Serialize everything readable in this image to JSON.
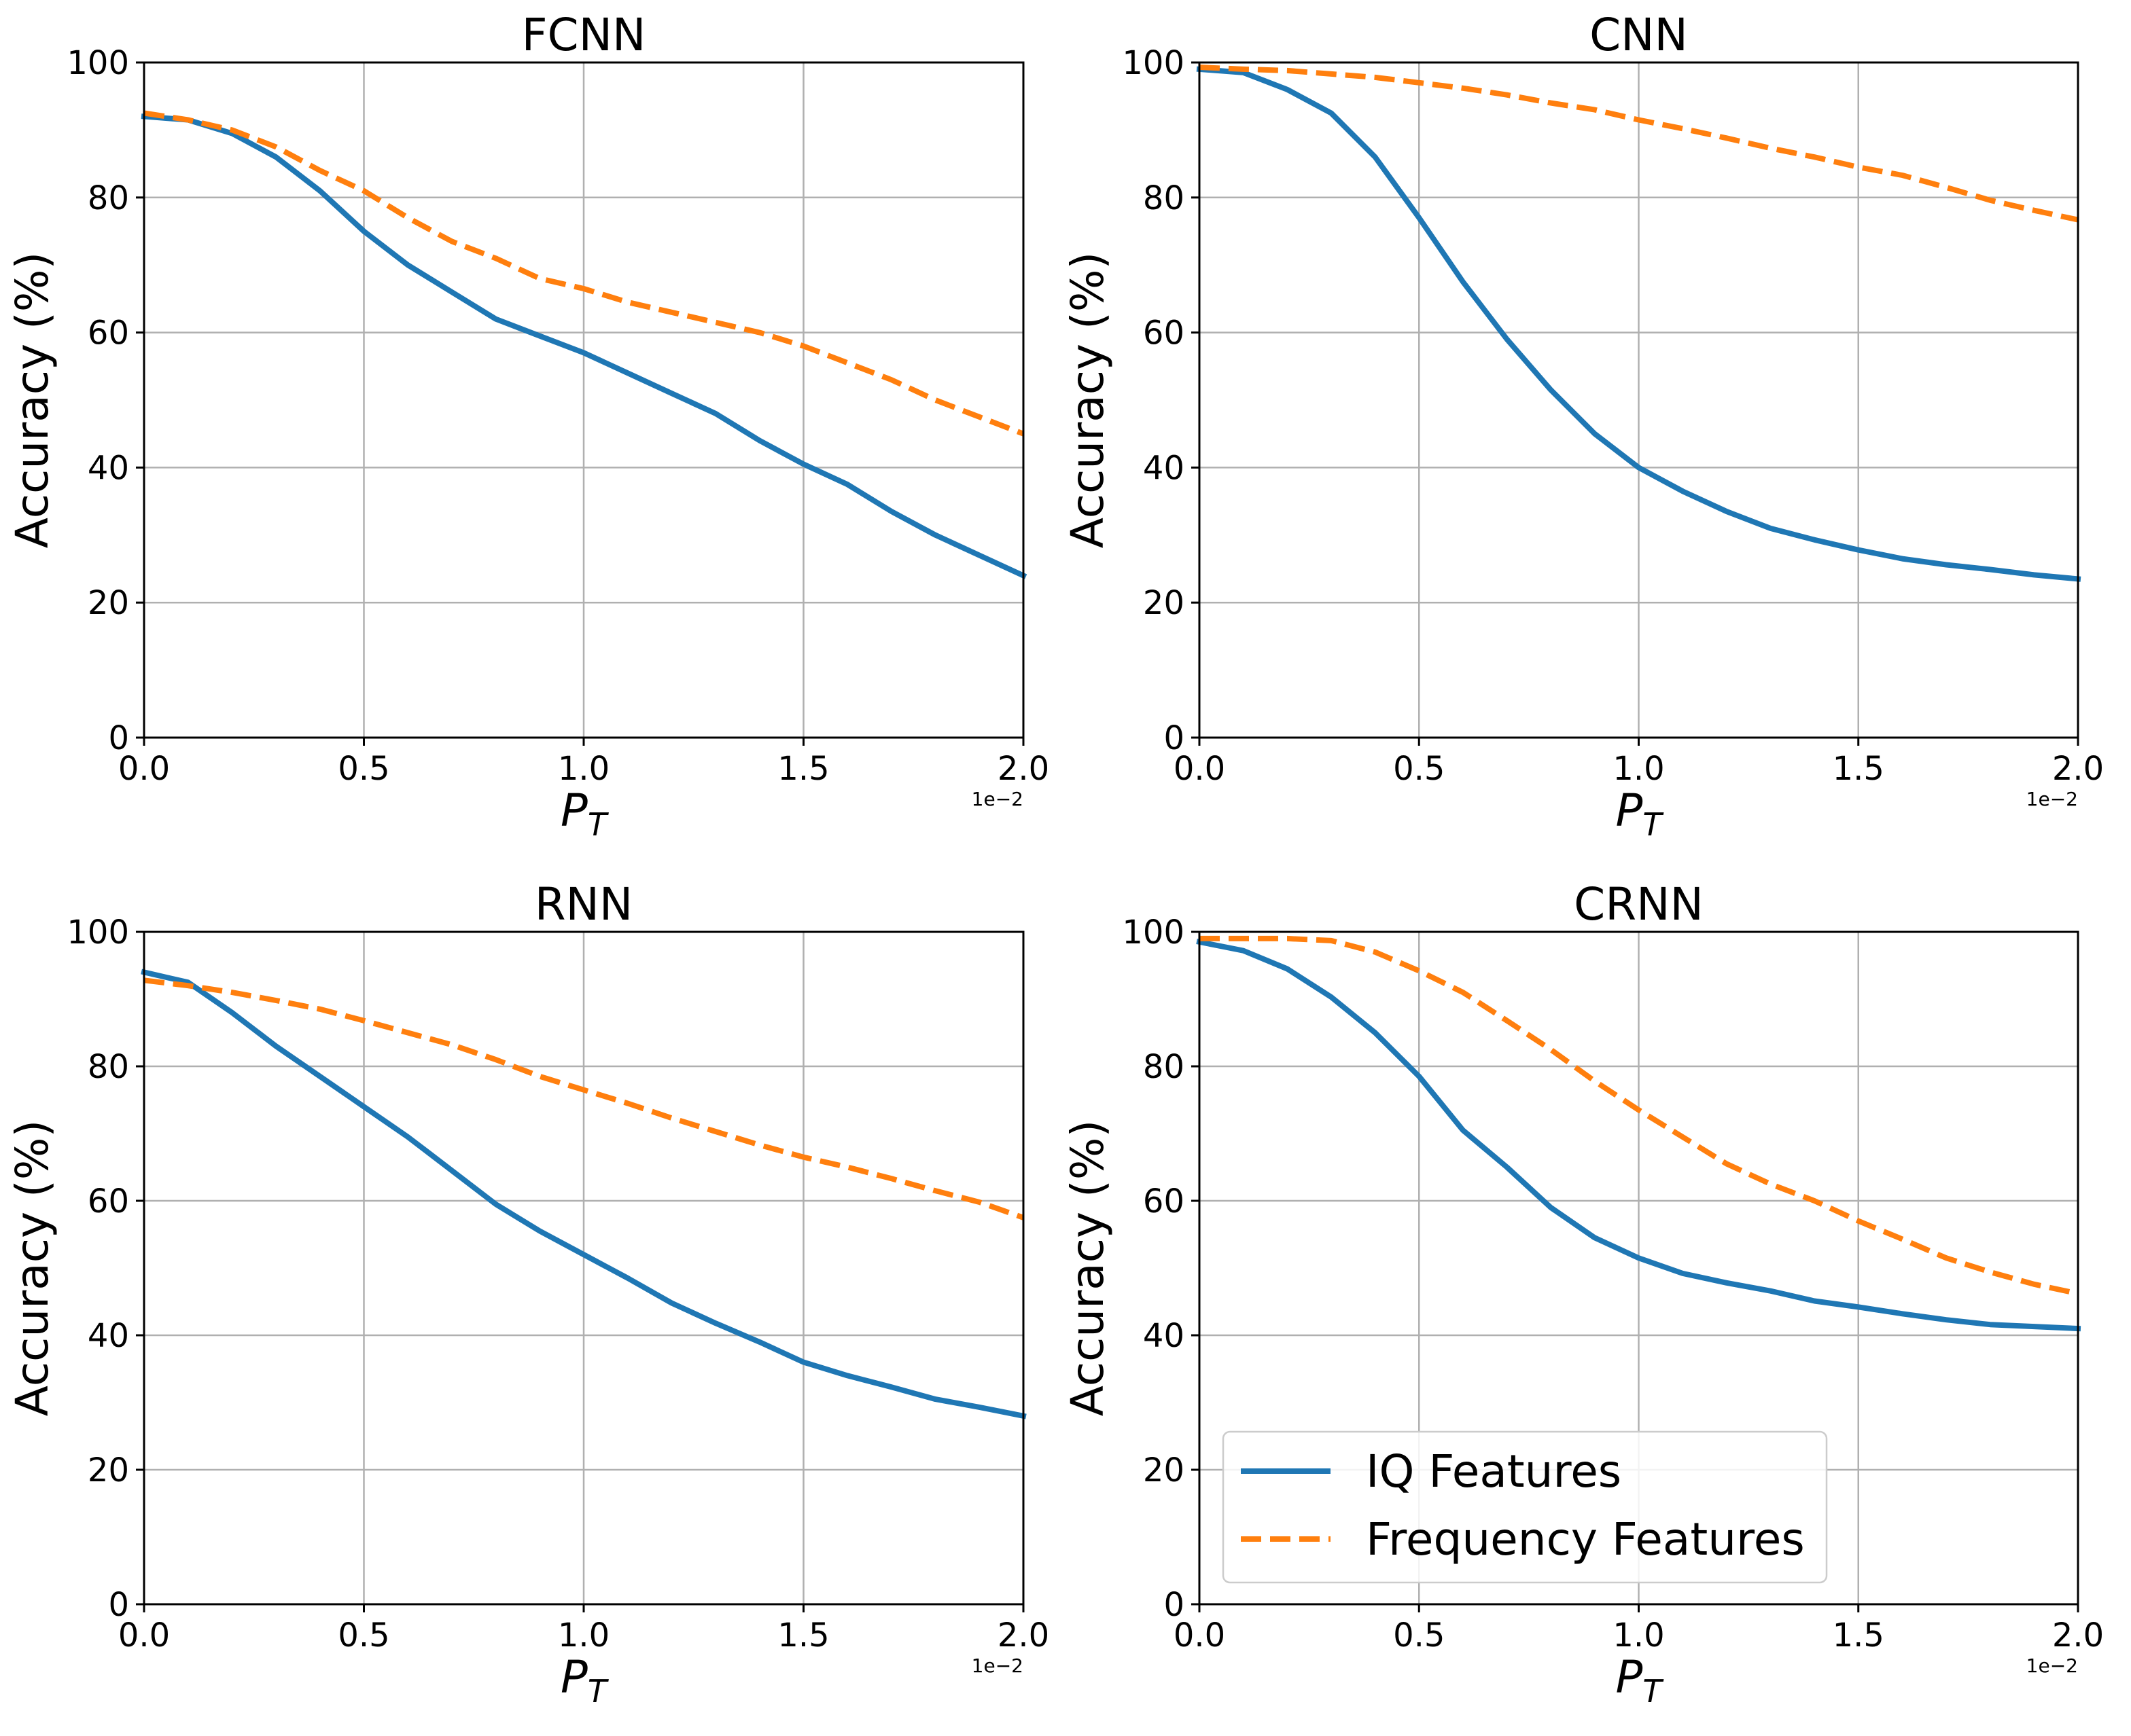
{
  "chart_data": [
    {
      "type": "line",
      "title": "FCNN",
      "xlabel": "P",
      "xlabel_subscript": "T",
      "ylabel": "Accuracy (%)",
      "x_offset_label": "1e−2",
      "xlim": [
        0.0,
        2.0
      ],
      "ylim": [
        0,
        100
      ],
      "xticks": [
        "0.0",
        "0.5",
        "1.0",
        "1.5",
        "2.0"
      ],
      "yticks": [
        "0",
        "20",
        "40",
        "60",
        "80",
        "100"
      ],
      "grid": true,
      "x": [
        0.0,
        0.1,
        0.2,
        0.3,
        0.4,
        0.5,
        0.6,
        0.7,
        0.8,
        0.9,
        1.0,
        1.1,
        1.2,
        1.3,
        1.4,
        1.5,
        1.6,
        1.7,
        1.8,
        1.9,
        2.0
      ],
      "series": [
        {
          "name": "IQ Features",
          "color": "#1f77b4",
          "dash": "solid",
          "values": [
            92,
            91.5,
            89.5,
            86,
            81,
            75,
            70,
            66,
            62,
            59.5,
            57,
            54,
            51,
            48,
            44,
            40.5,
            37.5,
            33.5,
            30,
            27,
            24
          ]
        },
        {
          "name": "Frequency Features",
          "color": "#ff7f0e",
          "dash": "dashed",
          "values": [
            92.5,
            91.5,
            90,
            87.5,
            84,
            81,
            77,
            73.5,
            71,
            68,
            66.5,
            64.5,
            63,
            61.5,
            60,
            58,
            55.5,
            53,
            50,
            47.5,
            45
          ]
        }
      ]
    },
    {
      "type": "line",
      "title": "CNN",
      "xlabel": "P",
      "xlabel_subscript": "T",
      "ylabel": "Accuracy (%)",
      "x_offset_label": "1e−2",
      "xlim": [
        0.0,
        2.0
      ],
      "ylim": [
        0,
        100
      ],
      "xticks": [
        "0.0",
        "0.5",
        "1.0",
        "1.5",
        "2.0"
      ],
      "yticks": [
        "0",
        "20",
        "40",
        "60",
        "80",
        "100"
      ],
      "grid": true,
      "x": [
        0.0,
        0.1,
        0.2,
        0.3,
        0.4,
        0.5,
        0.6,
        0.7,
        0.8,
        0.9,
        1.0,
        1.1,
        1.2,
        1.3,
        1.4,
        1.5,
        1.6,
        1.7,
        1.8,
        1.9,
        2.0
      ],
      "series": [
        {
          "name": "IQ Features",
          "color": "#1f77b4",
          "dash": "solid",
          "values": [
            99,
            98.5,
            96,
            92.5,
            86,
            77,
            67.5,
            59,
            51.5,
            45,
            40,
            36.5,
            33.5,
            31,
            29.3,
            27.8,
            26.5,
            25.6,
            24.9,
            24.1,
            23.5
          ]
        },
        {
          "name": "Frequency Features",
          "color": "#ff7f0e",
          "dash": "dashed",
          "values": [
            99.3,
            99,
            98.8,
            98.3,
            97.8,
            97,
            96.2,
            95.2,
            94,
            93,
            91.5,
            90.2,
            88.8,
            87.3,
            86,
            84.5,
            83.3,
            81.5,
            79.6,
            78.1,
            76.7
          ]
        }
      ]
    },
    {
      "type": "line",
      "title": "RNN",
      "xlabel": "P",
      "xlabel_subscript": "T",
      "ylabel": "Accuracy (%)",
      "x_offset_label": "1e−2",
      "xlim": [
        0.0,
        2.0
      ],
      "ylim": [
        0,
        100
      ],
      "xticks": [
        "0.0",
        "0.5",
        "1.0",
        "1.5",
        "2.0"
      ],
      "yticks": [
        "0",
        "20",
        "40",
        "60",
        "80",
        "100"
      ],
      "grid": true,
      "x": [
        0.0,
        0.1,
        0.2,
        0.3,
        0.4,
        0.5,
        0.6,
        0.7,
        0.8,
        0.9,
        1.0,
        1.1,
        1.2,
        1.3,
        1.4,
        1.5,
        1.6,
        1.7,
        1.8,
        1.9,
        2.0
      ],
      "series": [
        {
          "name": "IQ Features",
          "color": "#1f77b4",
          "dash": "solid",
          "values": [
            94,
            92.5,
            88,
            83,
            78.5,
            74,
            69.5,
            64.5,
            59.5,
            55.5,
            52,
            48.5,
            44.8,
            41.8,
            39,
            36,
            34,
            32.3,
            30.5,
            29.3,
            28
          ]
        },
        {
          "name": "Frequency Features",
          "color": "#ff7f0e",
          "dash": "dashed",
          "values": [
            92.8,
            92,
            91,
            89.8,
            88.5,
            86.8,
            85,
            83.2,
            81,
            78.5,
            76.5,
            74.5,
            72.3,
            70.3,
            68.3,
            66.5,
            65,
            63.3,
            61.5,
            59.8,
            57.5
          ]
        }
      ]
    },
    {
      "type": "line",
      "title": "CRNN",
      "xlabel": "P",
      "xlabel_subscript": "T",
      "ylabel": "Accuracy (%)",
      "x_offset_label": "1e−2",
      "xlim": [
        0.0,
        2.0
      ],
      "ylim": [
        0,
        100
      ],
      "xticks": [
        "0.0",
        "0.5",
        "1.0",
        "1.5",
        "2.0"
      ],
      "yticks": [
        "0",
        "20",
        "40",
        "60",
        "80",
        "100"
      ],
      "grid": true,
      "legend": {
        "location": "lower-left",
        "entries": [
          "IQ Features",
          "Frequency Features"
        ]
      },
      "x": [
        0.0,
        0.1,
        0.2,
        0.3,
        0.4,
        0.5,
        0.6,
        0.7,
        0.8,
        0.9,
        1.0,
        1.1,
        1.2,
        1.3,
        1.4,
        1.5,
        1.6,
        1.7,
        1.8,
        1.9,
        2.0
      ],
      "series": [
        {
          "name": "IQ Features",
          "color": "#1f77b4",
          "dash": "solid",
          "values": [
            98.5,
            97.2,
            94.5,
            90.3,
            85,
            78.5,
            70.5,
            65,
            59,
            54.5,
            51.5,
            49.2,
            47.8,
            46.6,
            45.1,
            44.2,
            43.2,
            42.3,
            41.6,
            41.3,
            41
          ]
        },
        {
          "name": "Frequency Features",
          "color": "#ff7f0e",
          "dash": "dashed",
          "values": [
            99,
            99,
            99,
            98.7,
            97,
            94.2,
            91,
            86.8,
            82.5,
            77.8,
            73.5,
            69.5,
            65.5,
            62.5,
            60,
            57,
            54.3,
            51.5,
            49.4,
            47.6,
            46.2
          ]
        }
      ]
    }
  ]
}
